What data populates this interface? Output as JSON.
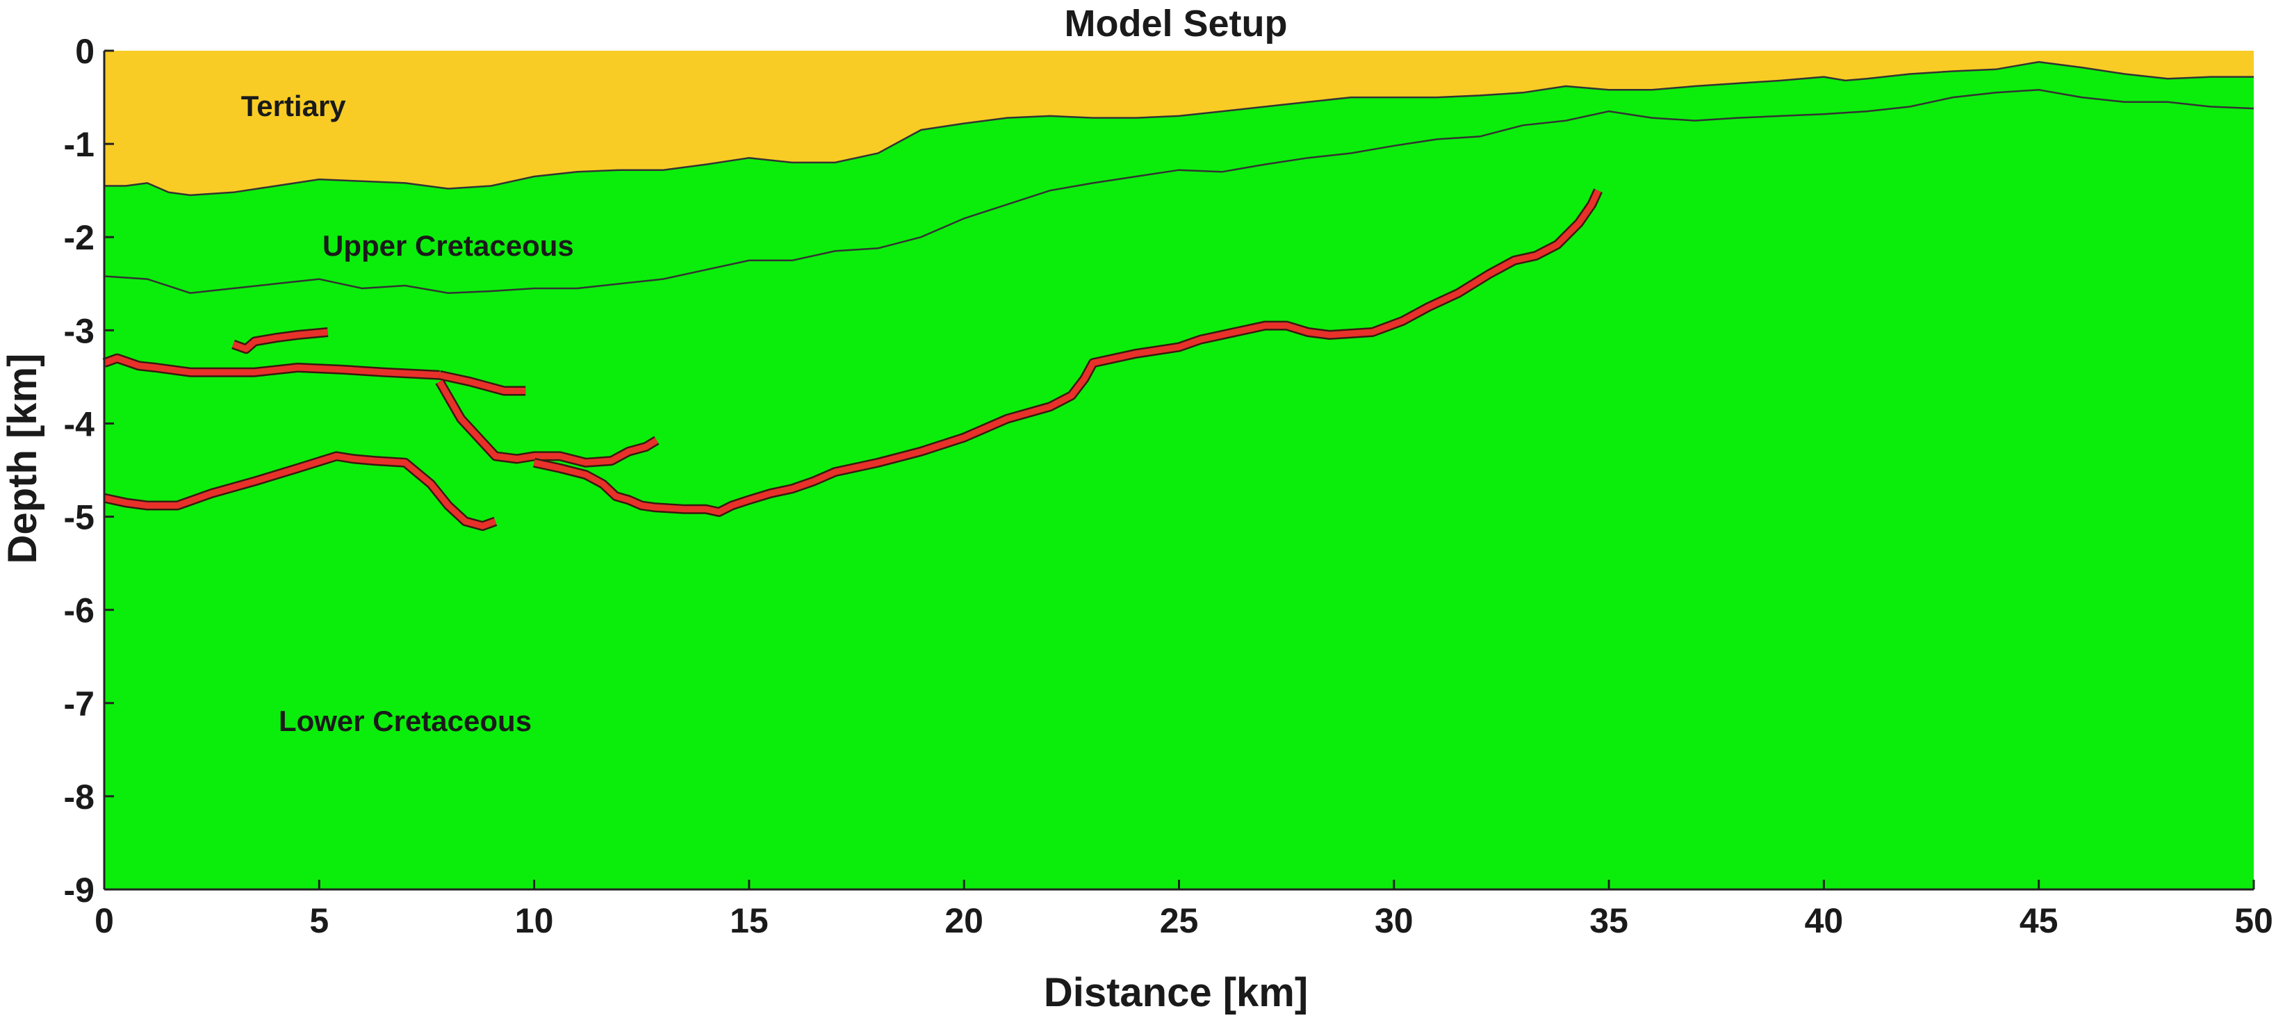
{
  "chart_data": {
    "type": "area",
    "title": "Model Setup",
    "xlabel": "Distance [km]",
    "ylabel": "Depth [km]",
    "xlim": [
      0,
      50
    ],
    "ylim": [
      -9,
      0
    ],
    "xticks": [
      0,
      5,
      10,
      15,
      20,
      25,
      30,
      35,
      40,
      45,
      50
    ],
    "yticks": [
      0,
      -1,
      -2,
      -3,
      -4,
      -5,
      -6,
      -7,
      -8,
      -9
    ],
    "grid": false,
    "colors": {
      "tertiary": "#f8cc25",
      "cretaceous": "#0bee0b",
      "horizon": "#e8312a",
      "boundary": "#333333"
    },
    "units": [
      {
        "name": "Tertiary",
        "label_at": [
          4.4,
          -0.7
        ]
      },
      {
        "name": "Upper Cretaceous",
        "label_at": [
          8.0,
          -2.2
        ]
      },
      {
        "name": "Lower Cretaceous",
        "label_at": [
          7.0,
          -7.3
        ]
      }
    ],
    "base_tertiary": {
      "x": [
        0,
        0.5,
        1,
        1.5,
        2,
        3,
        4,
        5,
        6,
        7,
        8,
        9,
        10,
        11,
        12,
        13,
        14,
        15,
        16,
        17,
        18,
        19,
        20,
        21,
        22,
        23,
        24,
        25,
        26,
        27,
        28,
        29,
        30,
        31,
        32,
        33,
        34,
        35,
        36,
        37,
        38,
        39,
        40,
        40.5,
        41,
        42,
        43,
        44,
        45,
        46,
        47,
        48,
        49,
        50
      ],
      "y": [
        -1.45,
        -1.45,
        -1.42,
        -1.52,
        -1.55,
        -1.52,
        -1.45,
        -1.38,
        -1.4,
        -1.42,
        -1.48,
        -1.45,
        -1.35,
        -1.3,
        -1.28,
        -1.28,
        -1.22,
        -1.15,
        -1.2,
        -1.2,
        -1.1,
        -0.85,
        -0.78,
        -0.72,
        -0.7,
        -0.72,
        -0.72,
        -0.7,
        -0.65,
        -0.6,
        -0.55,
        -0.5,
        -0.5,
        -0.5,
        -0.48,
        -0.45,
        -0.38,
        -0.42,
        -0.42,
        -0.38,
        -0.35,
        -0.32,
        -0.28,
        -0.32,
        -0.3,
        -0.25,
        -0.22,
        -0.2,
        -0.12,
        -0.18,
        -0.25,
        -0.3,
        -0.28,
        -0.28
      ]
    },
    "base_upper_cretaceous": {
      "x": [
        0,
        1,
        2,
        3,
        4,
        5,
        6,
        7,
        8,
        9,
        10,
        11,
        12,
        13,
        14,
        15,
        16,
        17,
        18,
        19,
        20,
        21,
        22,
        23,
        24,
        25,
        26,
        27,
        28,
        29,
        30,
        31,
        32,
        33,
        34,
        35,
        36,
        37,
        38,
        39,
        40,
        41,
        42,
        43,
        44,
        45,
        46,
        47,
        48,
        49,
        50
      ],
      "y": [
        -2.42,
        -2.45,
        -2.6,
        -2.55,
        -2.5,
        -2.45,
        -2.55,
        -2.52,
        -2.6,
        -2.58,
        -2.55,
        -2.55,
        -2.5,
        -2.45,
        -2.35,
        -2.25,
        -2.25,
        -2.15,
        -2.12,
        -2.0,
        -1.8,
        -1.65,
        -1.5,
        -1.42,
        -1.35,
        -1.28,
        -1.3,
        -1.22,
        -1.15,
        -1.1,
        -1.02,
        -0.95,
        -0.92,
        -0.8,
        -0.75,
        -0.65,
        -0.72,
        -0.75,
        -0.72,
        -0.7,
        -0.68,
        -0.65,
        -0.6,
        -0.5,
        -0.45,
        -0.42,
        -0.5,
        -0.55,
        -0.55,
        -0.6,
        -0.62
      ]
    },
    "horizons": [
      {
        "x": [
          3.0,
          3.3,
          3.5,
          4.0,
          4.5,
          5.2
        ],
        "y": [
          -3.15,
          -3.2,
          -3.12,
          -3.08,
          -3.05,
          -3.02
        ]
      },
      {
        "x": [
          0,
          0.3,
          0.8,
          1.2,
          2.0,
          3.0,
          3.5,
          4.5,
          5.5,
          6.5,
          7.8
        ],
        "y": [
          -3.35,
          -3.3,
          -3.38,
          -3.4,
          -3.45,
          -3.45,
          -3.45,
          -3.4,
          -3.42,
          -3.45,
          -3.48
        ]
      },
      {
        "x": [
          7.8,
          8.5,
          9.3,
          9.8
        ],
        "y": [
          -3.48,
          -3.55,
          -3.65,
          -3.65
        ]
      },
      {
        "x": [
          7.8,
          8.3,
          9.1,
          9.6,
          10.0,
          10.6,
          11.2,
          11.8,
          12.2,
          12.6,
          12.85
        ],
        "y": [
          -3.55,
          -3.95,
          -4.35,
          -4.38,
          -4.35,
          -4.35,
          -4.42,
          -4.4,
          -4.3,
          -4.25,
          -4.18
        ]
      },
      {
        "x": [
          10.0,
          10.6,
          11.2,
          11.6,
          11.9,
          12.2,
          12.5,
          12.8,
          13.5,
          14.0,
          14.3,
          14.6,
          15.0,
          15.5,
          16.0,
          16.5,
          17.0,
          18.0,
          19.0,
          20.0,
          21.0,
          22.0,
          22.5,
          22.8,
          23.0,
          24.0,
          25.0,
          25.5,
          26.0,
          26.5,
          27.0,
          27.5,
          28.0,
          28.5,
          29.5,
          30.2,
          30.8,
          31.5,
          32.2,
          32.8,
          33.3,
          33.8,
          34.3,
          34.6,
          34.75
        ],
        "y": [
          -4.42,
          -4.48,
          -4.55,
          -4.65,
          -4.78,
          -4.82,
          -4.88,
          -4.9,
          -4.92,
          -4.92,
          -4.95,
          -4.88,
          -4.82,
          -4.75,
          -4.7,
          -4.62,
          -4.52,
          -4.42,
          -4.3,
          -4.15,
          -3.95,
          -3.82,
          -3.7,
          -3.52,
          -3.35,
          -3.25,
          -3.18,
          -3.1,
          -3.05,
          -3.0,
          -2.95,
          -2.95,
          -3.02,
          -3.05,
          -3.02,
          -2.9,
          -2.75,
          -2.6,
          -2.4,
          -2.25,
          -2.2,
          -2.08,
          -1.85,
          -1.65,
          -1.5
        ]
      },
      {
        "x": [
          0,
          0.5,
          1.0,
          1.7,
          2.5,
          3.5,
          4.5,
          5.4,
          5.8,
          6.3,
          7.0,
          7.6,
          8.0,
          8.4,
          8.8,
          9.1
        ],
        "y": [
          -4.8,
          -4.85,
          -4.88,
          -4.88,
          -4.75,
          -4.62,
          -4.48,
          -4.35,
          -4.38,
          -4.4,
          -4.42,
          -4.65,
          -4.88,
          -5.05,
          -5.1,
          -5.05
        ]
      }
    ]
  }
}
